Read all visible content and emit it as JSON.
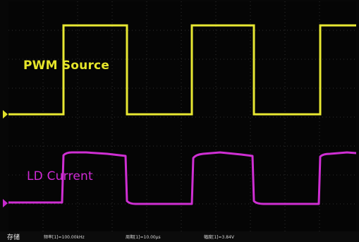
{
  "waveforms": {
    "pwm_label": "PWM Source",
    "ld_label": "LD Current"
  },
  "colors": {
    "pwm_trace": "#e8e832",
    "ld_trace": "#cf2fd3",
    "grid": "#3a3a3a",
    "background": "#050505"
  },
  "status_bar": {
    "save_label": "存储",
    "frequency": "频率[1]=100.00kHz",
    "period": "周期[1]=10.00μs",
    "amplitude": "幅度[1]=3.84V"
  }
}
